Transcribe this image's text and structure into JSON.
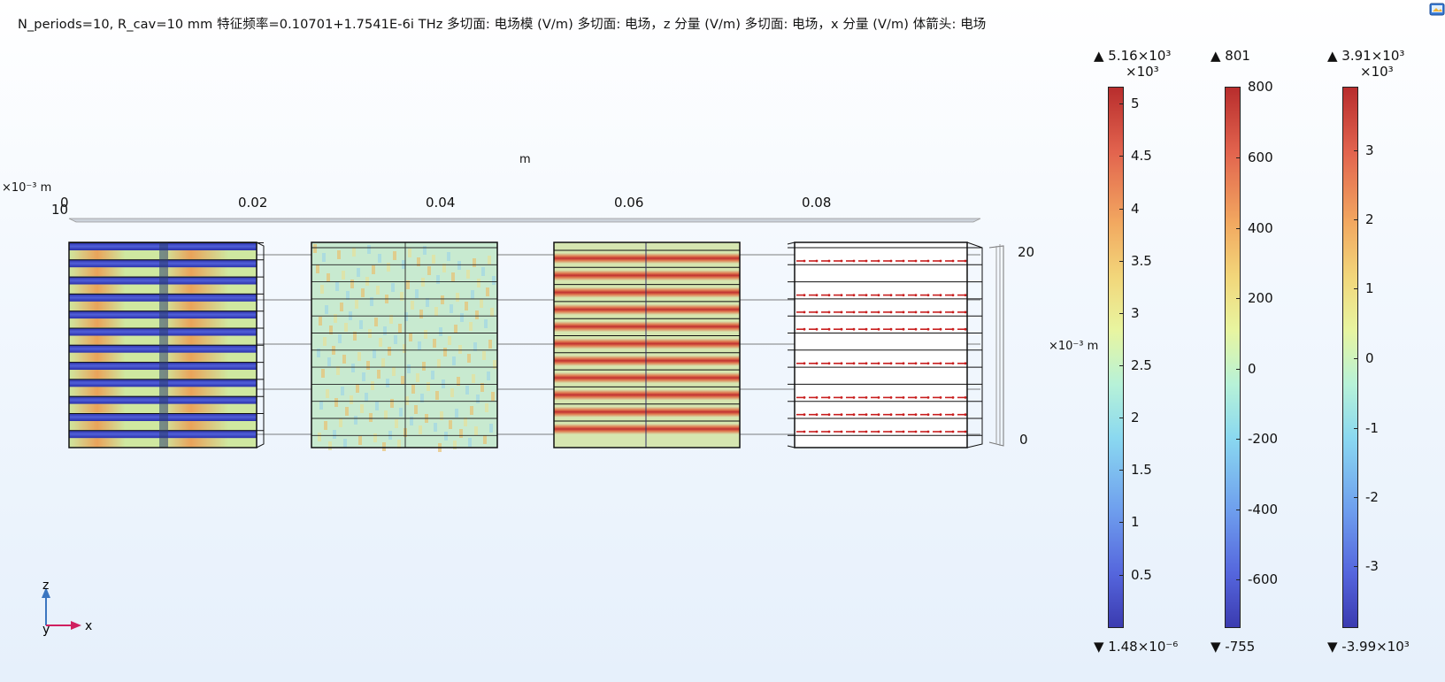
{
  "plot": {
    "title": "N_periods=10, R_cav=10 mm 特征频率=0.10701+1.7541E-6i THz   多切面: 电场模 (V/m)  多切面: 电场，z 分量 (V/m)  多切面: 电场，x 分量 (V/m)  体箭头: 电场",
    "x_axis_unit": "m",
    "x_ticks": [
      "0",
      "0.02",
      "0.04",
      "0.06",
      "0.08"
    ],
    "y_scale_label": "×10⁻³ m",
    "y_scale_value": "10",
    "z_ticks": [
      "20",
      "0"
    ],
    "z_scale_label": "×10⁻³ m"
  },
  "colorbars": [
    {
      "max_label": "▲ 5.16×10³",
      "mult": "×10³",
      "ticks": [
        "5",
        "4.5",
        "4",
        "3.5",
        "3",
        "2.5",
        "2",
        "1.5",
        "1",
        "0.5"
      ],
      "min_label": "▼ 1.48×10⁻⁶"
    },
    {
      "max_label": "▲ 801",
      "mult": "",
      "ticks": [
        "800",
        "600",
        "400",
        "200",
        "0",
        "-200",
        "-400",
        "-600"
      ],
      "min_label": "▼ -755"
    },
    {
      "max_label": "▲ 3.91×10³",
      "mult": "×10³",
      "ticks": [
        "3",
        "2",
        "1",
        "0",
        "-1",
        "-2",
        "-3"
      ],
      "min_label": "▼ -3.99×10³"
    }
  ],
  "axes_triad": {
    "z": "z",
    "y": "y",
    "x": "x"
  },
  "icons": {
    "corner": "image-export-icon"
  }
}
